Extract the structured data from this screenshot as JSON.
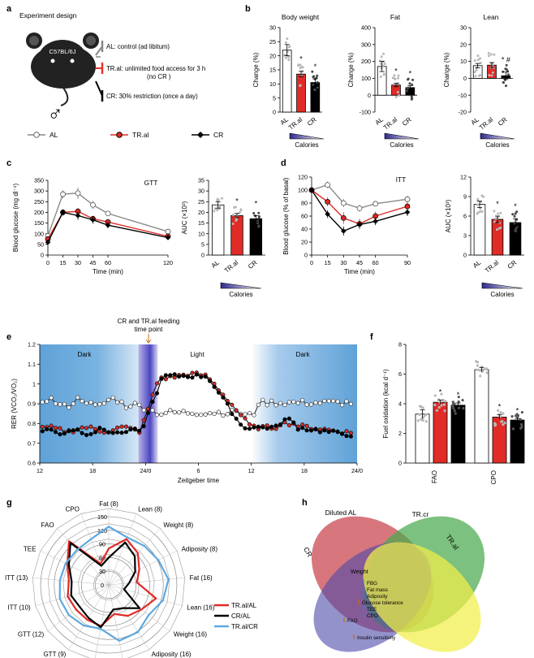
{
  "panel_labels": [
    "a",
    "b",
    "c",
    "d",
    "e",
    "f",
    "g",
    "h"
  ],
  "a": {
    "title": "Experiment design",
    "mouse_label": "C57BL/6J",
    "sex_symbol": "♂",
    "arms": [
      {
        "text": "AL: control (ad libitum)",
        "color": "#888888"
      },
      {
        "text": "TR.al: unlimited food access for 3 h",
        "text2": "(no CR )",
        "color": "#e8322d"
      },
      {
        "text": "CR: 30% restriction (once a day)",
        "color": "#000000"
      }
    ],
    "legend": [
      "AL",
      "TR.al",
      "CR"
    ]
  },
  "colors": {
    "AL": "#ffffff",
    "TR.al": "#e02b26",
    "CR": "#000000",
    "grey": "#9b9b9b",
    "light_blue": "#5da8e0"
  },
  "b": {
    "calories_label": "Calories",
    "groups": [
      "AL",
      "TR.al",
      "CR"
    ],
    "y_label": "Change (%)",
    "charts": [
      {
        "title": "Body weight",
        "ylim": [
          0,
          30
        ],
        "ticks": [
          0,
          5,
          10,
          15,
          20,
          25,
          30
        ],
        "values": [
          22,
          13.5,
          10.5
        ],
        "errors": [
          2,
          1,
          1.3
        ],
        "sig": [
          "",
          "*",
          "*"
        ]
      },
      {
        "title": "Fat",
        "ylim": [
          -100,
          400
        ],
        "ticks": [
          -100,
          0,
          100,
          200,
          300,
          400
        ],
        "values": [
          170,
          60,
          45
        ],
        "errors": [
          30,
          10,
          12
        ],
        "sig": [
          "",
          "*",
          "*"
        ]
      },
      {
        "title": "Lean",
        "ylim": [
          -20,
          30
        ],
        "ticks": [
          -20,
          -10,
          0,
          10,
          20,
          30
        ],
        "values": [
          7.5,
          7.8,
          1.5
        ],
        "errors": [
          1.3,
          1.5,
          2.2
        ],
        "sig": [
          "",
          "",
          "* #"
        ]
      }
    ]
  },
  "c": {
    "title": "GTT",
    "y_label": "Blood glucose (mg dl⁻¹)",
    "x_label": "Time (min)",
    "x": [
      0,
      15,
      30,
      45,
      60,
      120
    ],
    "ylim": [
      0,
      350
    ],
    "yticks": [
      0,
      50,
      100,
      150,
      200,
      250,
      300,
      350
    ],
    "series": [
      {
        "name": "AL",
        "values": [
          90,
          285,
          290,
          235,
          195,
          110
        ],
        "err": [
          10,
          18,
          25,
          18,
          12,
          8
        ]
      },
      {
        "name": "TR.al",
        "values": [
          75,
          200,
          205,
          170,
          155,
          88
        ],
        "err": [
          8,
          12,
          15,
          12,
          10,
          8
        ]
      },
      {
        "name": "CR",
        "values": [
          60,
          200,
          185,
          165,
          140,
          82
        ],
        "err": [
          8,
          15,
          20,
          18,
          15,
          8
        ]
      }
    ],
    "auc": {
      "label": "AUC (×10³)",
      "ylim": [
        0,
        35
      ],
      "ticks": [
        0,
        5,
        10,
        15,
        20,
        25,
        30,
        35
      ],
      "values": [
        23.5,
        18.5,
        17
      ],
      "errors": [
        1.5,
        1,
        1.5
      ],
      "sig": [
        "",
        "*",
        "*"
      ]
    }
  },
  "d": {
    "title": "ITT",
    "y_label": "Blood glucose (% of basal)",
    "x_label": "Time (min)",
    "x": [
      0,
      15,
      30,
      45,
      60,
      90
    ],
    "ylim": [
      0,
      120
    ],
    "yticks": [
      0,
      20,
      40,
      60,
      80,
      100,
      120
    ],
    "series": [
      {
        "name": "AL",
        "values": [
          100,
          108,
          80,
          72,
          79,
          86
        ],
        "err": [
          0,
          5,
          6,
          5,
          4,
          5
        ]
      },
      {
        "name": "TR.al",
        "values": [
          100,
          82,
          57,
          48,
          60,
          75
        ],
        "err": [
          0,
          7,
          9,
          8,
          7,
          7
        ]
      },
      {
        "name": "CR",
        "values": [
          100,
          63,
          37,
          47,
          52,
          66
        ],
        "err": [
          0,
          6,
          7,
          6,
          6,
          6
        ]
      }
    ],
    "auc": {
      "label": "AUC (×10³)",
      "ylim": [
        0,
        12
      ],
      "ticks": [
        0,
        3,
        6,
        9,
        12
      ],
      "values": [
        7.8,
        5.5,
        5
      ],
      "errors": [
        0.5,
        0.5,
        0.6
      ],
      "sig": [
        "",
        "*",
        "*"
      ]
    }
  },
  "e": {
    "annotation_line1": "CR and TR.al feeding",
    "annotation_line2": "time point",
    "phases": [
      "Dark",
      "Light",
      "Dark"
    ],
    "y_label": "RER (VCO₂/VO₂)",
    "x_label": "Zeitgeber time",
    "xticks": [
      "12",
      "18",
      "24/0",
      "6",
      "12",
      "18",
      "24/0"
    ],
    "ylim": [
      0.6,
      1.2
    ],
    "yticks": [
      0.6,
      0.7,
      0.8,
      0.9,
      1,
      1.1,
      1.2
    ]
  },
  "f": {
    "y_label": "Fuel oxidation (kcal d⁻¹)",
    "ylim": [
      0,
      8
    ],
    "ticks": [
      0,
      2,
      4,
      6,
      8
    ],
    "categories": [
      "FAO",
      "CPO"
    ],
    "values": [
      [
        3.3,
        4.1,
        3.9
      ],
      [
        6.3,
        3.1,
        2.9
      ]
    ],
    "errors": [
      [
        0.3,
        0.15,
        0.15
      ],
      [
        0.15,
        0.15,
        0.1
      ]
    ],
    "sig": [
      [
        "",
        "*",
        "*"
      ],
      [
        "",
        "*",
        "*"
      ]
    ]
  },
  "g": {
    "axes": [
      "Fat (8)",
      "Lean (8)",
      "Weight (8)",
      "Adiposity (8)",
      "Fat (16)",
      "Lean (16)",
      "Weight (16)",
      "Adiposity (16)",
      "FBG (9)",
      "FBG (12)",
      "GTT (9)",
      "GTT (12)",
      "ITT (10)",
      "ITT (13)",
      "TEE",
      "FAO",
      "CPO"
    ],
    "rings": [
      0,
      30,
      60,
      90,
      120,
      150
    ],
    "series": [
      {
        "name": "TR.al/AL",
        "color": "#e02b26",
        "values": [
          80,
          108,
          95,
          75,
          62,
          108,
          90,
          80,
          65,
          92,
          90,
          90,
          94,
          88,
          102,
          130,
          50
        ]
      },
      {
        "name": "CR/AL",
        "color": "#000000",
        "values": [
          60,
          100,
          85,
          65,
          45,
          35,
          85,
          60,
          55,
          95,
          85,
          80,
          86,
          82,
          98,
          125,
          45
        ]
      },
      {
        "name": "TR.al/CR",
        "color": "#5da8e0",
        "values": [
          128,
          112,
          116,
          122,
          132,
          124,
          110,
          122,
          125,
          98,
          105,
          110,
          112,
          108,
          106,
          104,
          108
        ]
      }
    ]
  },
  "h": {
    "sets": [
      "Diluted AL",
      "TR.cr",
      "CR",
      "TR.al"
    ],
    "items": [
      "Weight",
      "FBG",
      "Fat mass",
      "Adiposity",
      "Glucose tolerance",
      "TEE",
      "CPO",
      "FAO",
      "Insulin sensitivity"
    ]
  }
}
